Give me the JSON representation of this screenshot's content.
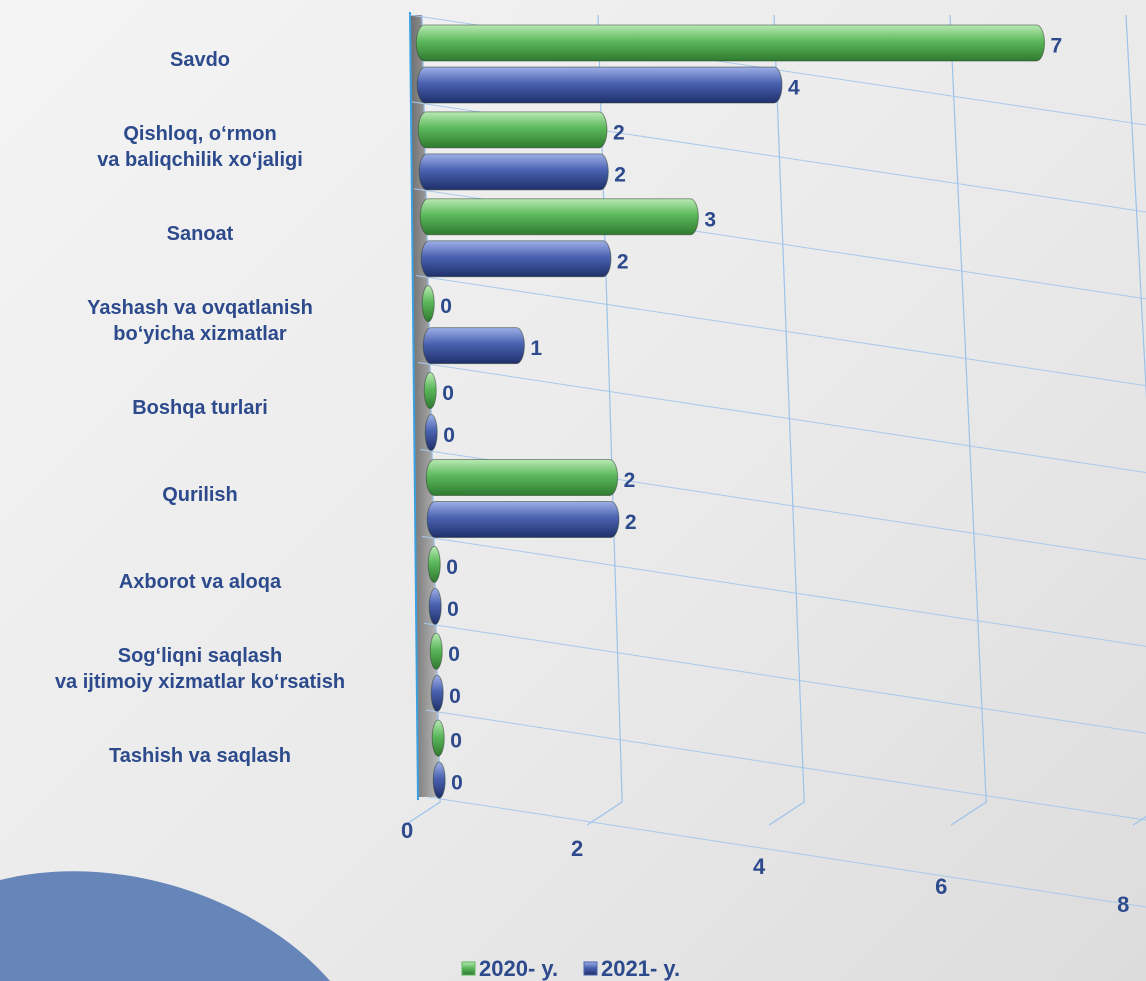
{
  "chart_data": {
    "type": "bar",
    "categories": [
      "Savdo",
      "Qishloq, o‘rmon\nva baliqchilik xo‘jaligi",
      "Sanoat",
      "Yashash va ovqatlanish\nbo‘yicha xizmatlar",
      "Boshqa turlari",
      "Qurilish",
      "Axborot va aloqa",
      "Sog‘liqni saqlash\nva ijtimoiy xizmatlar ko‘rsatish",
      "Tashish va saqlash"
    ],
    "series": [
      {
        "name": "2020- y.",
        "color": "#5cb85c",
        "values": [
          7,
          2,
          3,
          0,
          0,
          2,
          0,
          0,
          0
        ]
      },
      {
        "name": "2021- y.",
        "color": "#4a62b0",
        "values": [
          4,
          2,
          2,
          1,
          0,
          2,
          0,
          0,
          0
        ]
      }
    ],
    "xlim": [
      0,
      8
    ],
    "xticks": [
      0,
      2,
      4,
      6,
      8
    ],
    "grid": true,
    "legend": "bottom"
  }
}
